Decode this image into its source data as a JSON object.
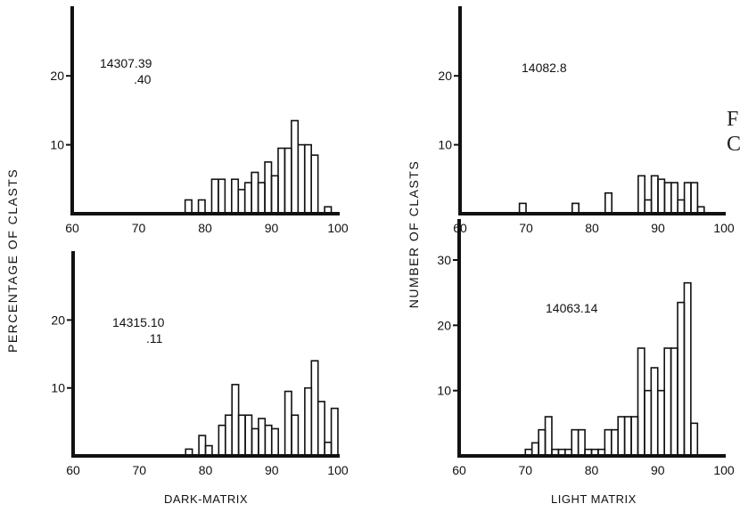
{
  "figure": {
    "left_ylabel": "PERCENTAGE OF  CLASTS",
    "right_ylabel": "NUMBER  OF  CLASTS",
    "left_xlabel": "DARK-MATRIX",
    "right_xlabel": "LIGHT MATRIX",
    "cropped_text": [
      "F",
      "C"
    ],
    "line_color": "#111111"
  },
  "chart_data": [
    {
      "type": "histogram",
      "sample_label": [
        "14307.39",
        ".40"
      ],
      "ylabel": "PERCENTAGE OF  CLASTS",
      "xlim": [
        60,
        100
      ],
      "ylim": [
        0,
        27
      ],
      "xticks": [
        60,
        70,
        80,
        90,
        100
      ],
      "yticks": [
        10,
        20
      ],
      "bin_width": 1,
      "bins": [
        {
          "x": 77,
          "y": 2
        },
        {
          "x": 78,
          "y": 0
        },
        {
          "x": 79,
          "y": 2
        },
        {
          "x": 80,
          "y": 0
        },
        {
          "x": 81,
          "y": 5
        },
        {
          "x": 82,
          "y": 5
        },
        {
          "x": 83,
          "y": 0
        },
        {
          "x": 84,
          "y": 5
        },
        {
          "x": 85,
          "y": 3.5
        },
        {
          "x": 86,
          "y": 4.5
        },
        {
          "x": 87,
          "y": 6
        },
        {
          "x": 88,
          "y": 4.5
        },
        {
          "x": 89,
          "y": 7.5
        },
        {
          "x": 90,
          "y": 5.5
        },
        {
          "x": 91,
          "y": 9.5
        },
        {
          "x": 92,
          "y": 9.5
        },
        {
          "x": 93,
          "y": 13.5
        },
        {
          "x": 94,
          "y": 10
        },
        {
          "x": 95,
          "y": 10
        },
        {
          "x": 96,
          "y": 8.5
        },
        {
          "x": 97,
          "y": 0
        },
        {
          "x": 98,
          "y": 1
        }
      ]
    },
    {
      "type": "histogram",
      "sample_label": [
        "14082.8"
      ],
      "ylabel": "NUMBER  OF  CLASTS",
      "xlim": [
        60,
        100
      ],
      "ylim": [
        0,
        27
      ],
      "xticks": [
        60,
        70,
        80,
        90,
        100
      ],
      "yticks": [
        10,
        20
      ],
      "bin_width": 1,
      "bins": [
        {
          "x": 69,
          "y": 1.5
        },
        {
          "x": 77,
          "y": 1.5
        },
        {
          "x": 82,
          "y": 3
        },
        {
          "x": 87,
          "y": 5.5
        },
        {
          "x": 88,
          "y": 2
        },
        {
          "x": 89,
          "y": 5.5
        },
        {
          "x": 90,
          "y": 5
        },
        {
          "x": 91,
          "y": 4.5
        },
        {
          "x": 92,
          "y": 4.5
        },
        {
          "x": 93,
          "y": 2
        },
        {
          "x": 94,
          "y": 4.5
        },
        {
          "x": 95,
          "y": 4.5
        },
        {
          "x": 96,
          "y": 1
        }
      ]
    },
    {
      "type": "histogram",
      "sample_label": [
        "14315.10",
        ".11"
      ],
      "ylabel": "PERCENTAGE OF  CLASTS",
      "xlabel": "DARK-MATRIX",
      "xlim": [
        60,
        100
      ],
      "ylim": [
        0,
        27
      ],
      "xticks": [
        60,
        70,
        80,
        90,
        100
      ],
      "yticks": [
        10,
        20
      ],
      "bin_width": 1,
      "bins": [
        {
          "x": 77,
          "y": 1
        },
        {
          "x": 78,
          "y": 0
        },
        {
          "x": 79,
          "y": 3
        },
        {
          "x": 80,
          "y": 1.5
        },
        {
          "x": 81,
          "y": 0
        },
        {
          "x": 82,
          "y": 4.5
        },
        {
          "x": 83,
          "y": 6
        },
        {
          "x": 84,
          "y": 10.5
        },
        {
          "x": 85,
          "y": 6
        },
        {
          "x": 86,
          "y": 6
        },
        {
          "x": 87,
          "y": 4
        },
        {
          "x": 88,
          "y": 5.5
        },
        {
          "x": 89,
          "y": 4.5
        },
        {
          "x": 90,
          "y": 4
        },
        {
          "x": 91,
          "y": 0
        },
        {
          "x": 92,
          "y": 9.5
        },
        {
          "x": 93,
          "y": 6
        },
        {
          "x": 94,
          "y": 0
        },
        {
          "x": 95,
          "y": 10
        },
        {
          "x": 96,
          "y": 14
        },
        {
          "x": 97,
          "y": 8
        },
        {
          "x": 98,
          "y": 2
        },
        {
          "x": 99,
          "y": 7
        }
      ]
    },
    {
      "type": "histogram",
      "sample_label": [
        "14063.14"
      ],
      "ylabel": "NUMBER  OF  CLASTS",
      "xlabel": "LIGHT MATRIX",
      "xlim": [
        60,
        100
      ],
      "ylim": [
        0,
        33
      ],
      "xticks": [
        60,
        70,
        80,
        90,
        100
      ],
      "yticks": [
        10,
        20,
        30
      ],
      "bin_width": 1,
      "bins": [
        {
          "x": 70,
          "y": 1
        },
        {
          "x": 71,
          "y": 2
        },
        {
          "x": 72,
          "y": 4
        },
        {
          "x": 73,
          "y": 6
        },
        {
          "x": 74,
          "y": 1
        },
        {
          "x": 75,
          "y": 1
        },
        {
          "x": 76,
          "y": 1
        },
        {
          "x": 77,
          "y": 4
        },
        {
          "x": 78,
          "y": 4
        },
        {
          "x": 79,
          "y": 1
        },
        {
          "x": 80,
          "y": 1
        },
        {
          "x": 81,
          "y": 1
        },
        {
          "x": 82,
          "y": 4
        },
        {
          "x": 83,
          "y": 4
        },
        {
          "x": 84,
          "y": 6
        },
        {
          "x": 85,
          "y": 6
        },
        {
          "x": 86,
          "y": 6
        },
        {
          "x": 87,
          "y": 16.5
        },
        {
          "x": 88,
          "y": 10
        },
        {
          "x": 89,
          "y": 13.5
        },
        {
          "x": 90,
          "y": 10
        },
        {
          "x": 91,
          "y": 16.5
        },
        {
          "x": 92,
          "y": 16.5
        },
        {
          "x": 93,
          "y": 23.5
        },
        {
          "x": 94,
          "y": 26.5
        },
        {
          "x": 95,
          "y": 5
        }
      ]
    }
  ]
}
